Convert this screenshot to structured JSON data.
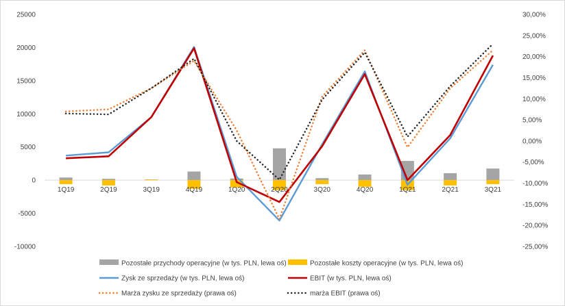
{
  "chart_data": {
    "type": "combo",
    "categories": [
      "1Q19",
      "2Q19",
      "3Q19",
      "4Q19",
      "1Q20",
      "2Q20",
      "3Q20",
      "4Q20",
      "1Q21",
      "2Q21",
      "3Q21"
    ],
    "left_axis": {
      "min": -10000,
      "max": 25000,
      "step": 5000,
      "ticks": [
        "25000",
        "20000",
        "15000",
        "10000",
        "5000",
        "0",
        "-5000",
        "-10000"
      ]
    },
    "right_axis": {
      "min": -25,
      "max": 30,
      "step": 5,
      "ticks": [
        "30,00%",
        "25,00%",
        "20,00%",
        "15,00%",
        "10,00%",
        "5,00%",
        "0,00%",
        "-5,00%",
        "-10,00%",
        "-15,00%",
        "-20,00%",
        "-25,00%"
      ]
    },
    "series": [
      {
        "name": "Pozostałe przychody operacyjne (w tys. PLN, lewa oś)",
        "type": "bar",
        "axis": "left",
        "color": "#a5a5a5",
        "values": [
          400,
          200,
          100,
          1300,
          250,
          4800,
          300,
          850,
          2900,
          1050,
          1750
        ]
      },
      {
        "name": "Pozostałe koszty operacyjne (w tys. PLN, lewa oś)",
        "type": "bar",
        "axis": "left",
        "color": "#ffc000",
        "values": [
          -600,
          -800,
          100,
          -1300,
          -1100,
          -1500,
          -600,
          -1000,
          -1500,
          -800,
          -600
        ]
      },
      {
        "name": "Zysk ze sprzedaży (w tys. PLN, lewa oś)",
        "type": "line",
        "axis": "left",
        "color": "#5b9bd5",
        "dash": "solid",
        "values": [
          3700,
          4200,
          9500,
          20100,
          500,
          -6100,
          5400,
          16400,
          -700,
          6300,
          17400
        ]
      },
      {
        "name": "EBIT (w tys. PLN, lewa oś)",
        "type": "line",
        "axis": "left",
        "color": "#c00000",
        "dash": "solid",
        "values": [
          3300,
          3600,
          9500,
          19900,
          -300,
          -3300,
          5100,
          16000,
          0,
          6800,
          18800
        ]
      },
      {
        "name": "Marża zysku ze sprzedaży (prawa oś)",
        "type": "line",
        "axis": "right",
        "color": "#ed7d31",
        "dash": "dotted",
        "values": [
          7.0,
          7.5,
          12.5,
          19.0,
          2.5,
          -18.5,
          10.5,
          21.5,
          -1.5,
          12.5,
          21.5
        ]
      },
      {
        "name": "marża EBIT (prawa oś)",
        "type": "line",
        "axis": "right",
        "color": "#262626",
        "dash": "dotted",
        "values": [
          6.5,
          6.3,
          12.5,
          19.5,
          0.0,
          -9.2,
          9.8,
          21.0,
          1.0,
          13.0,
          23.0
        ]
      }
    ],
    "legend_position": "bottom",
    "grid": false
  }
}
